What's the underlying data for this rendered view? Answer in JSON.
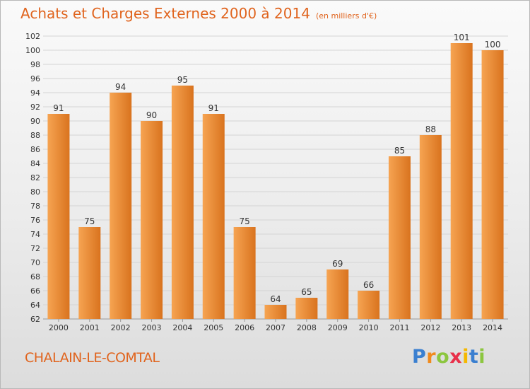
{
  "title": "Achats et Charges Externes 2000 à 2014",
  "unit": "(en milliers d'€)",
  "city": "CHALAIN-LE-COMTAL",
  "brand": {
    "letters": [
      "P",
      "r",
      "o",
      "x",
      "i",
      "t",
      "i"
    ],
    "colors": [
      "#3a7fd0",
      "#f08a1c",
      "#8cc63f",
      "#e8304a",
      "#f5b800",
      "#3a7fd0",
      "#8cc63f"
    ]
  },
  "colors": {
    "accent": "#e0641e",
    "bar_light": "#f6a452",
    "bar_dark": "#d9731e",
    "grid": "#d4d4d4"
  },
  "chart_data": {
    "type": "bar",
    "categories": [
      "2000",
      "2001",
      "2002",
      "2003",
      "2004",
      "2005",
      "2006",
      "2007",
      "2008",
      "2009",
      "2010",
      "2011",
      "2012",
      "2013",
      "2014"
    ],
    "values": [
      91,
      75,
      94,
      90,
      95,
      91,
      75,
      64,
      65,
      69,
      66,
      85,
      88,
      101,
      100
    ],
    "yticks": [
      62,
      64,
      66,
      68,
      70,
      72,
      74,
      76,
      78,
      80,
      82,
      84,
      86,
      88,
      90,
      92,
      94,
      96,
      98,
      100,
      102
    ],
    "ylim": [
      62,
      102
    ],
    "grid": true,
    "xlabel": "",
    "ylabel": ""
  }
}
